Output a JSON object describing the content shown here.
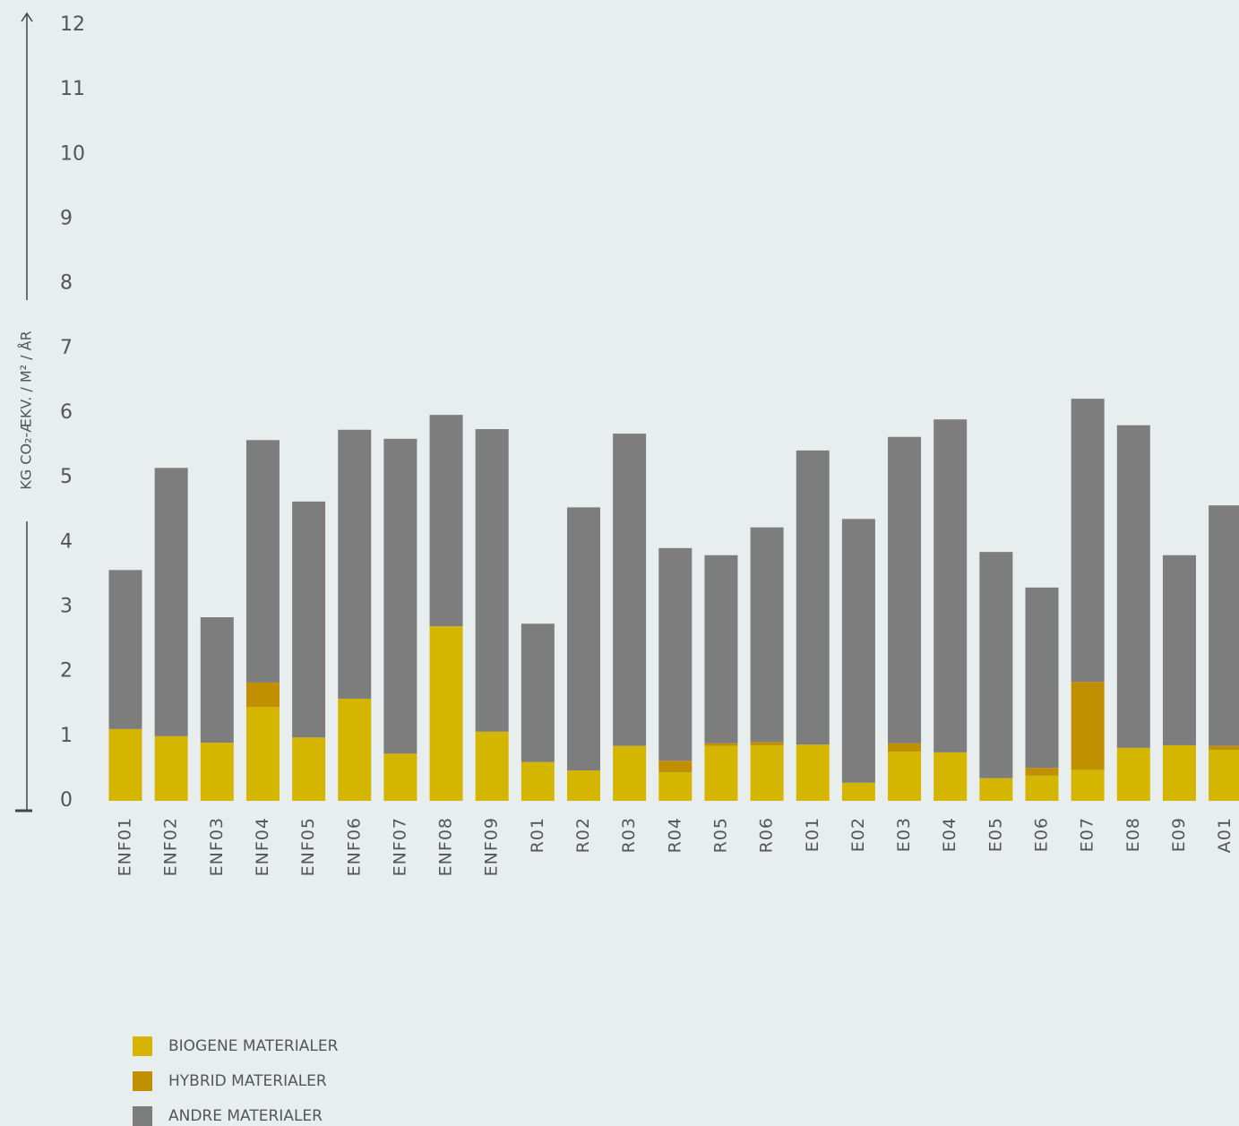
{
  "chart_data": {
    "type": "stacked_bar",
    "ylabel": "KG CO₂-ÆKV. / M² / ÅR",
    "categories": [
      "ENF01",
      "ENF02",
      "ENF03",
      "ENF04",
      "ENF05",
      "ENF06",
      "ENF07",
      "ENF08",
      "ENF09",
      "R01",
      "R02",
      "R03",
      "R04",
      "R05",
      "R06",
      "E01",
      "E02",
      "E03",
      "E04",
      "E05",
      "E06",
      "E07",
      "E08",
      "E09",
      "A01"
    ],
    "series": [
      {
        "name": "BIOGENE MATERIALER",
        "color": "#d4b600",
        "values": [
          1.11,
          1.0,
          0.9,
          1.45,
          0.98,
          1.58,
          0.73,
          2.7,
          1.07,
          0.6,
          0.47,
          0.85,
          0.44,
          0.85,
          0.86,
          0.87,
          0.28,
          0.76,
          0.75,
          0.35,
          0.39,
          0.48,
          0.82,
          0.86,
          0.79
        ]
      },
      {
        "name": "HYBRID MATERIALER",
        "color": "#c09000",
        "values": [
          0,
          0,
          0,
          0.38,
          0,
          0,
          0,
          0,
          0,
          0,
          0,
          0,
          0.18,
          0.04,
          0.05,
          0,
          0,
          0.13,
          0,
          0,
          0.12,
          1.36,
          0,
          0,
          0.06
        ]
      },
      {
        "name": "ANDRE MATERIALER",
        "color": "#7d7d7d",
        "values": [
          2.46,
          4.15,
          1.94,
          3.75,
          3.65,
          4.16,
          4.87,
          3.27,
          4.68,
          2.14,
          4.07,
          4.83,
          3.29,
          2.91,
          3.32,
          4.55,
          4.08,
          4.74,
          5.15,
          3.5,
          2.79,
          4.38,
          4.99,
          2.94,
          3.72
        ]
      }
    ],
    "ylim": [
      0,
      12
    ],
    "yticks": [
      0,
      1,
      2,
      3,
      4,
      5,
      6,
      7,
      8,
      9,
      10,
      11,
      12
    ]
  }
}
